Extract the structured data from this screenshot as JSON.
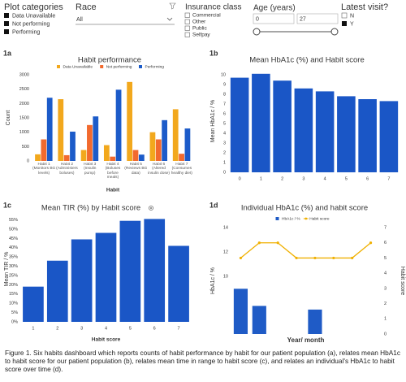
{
  "filters": {
    "plot_categories": {
      "title": "Plot categories",
      "items": [
        "Data Unavailable",
        "Not performing",
        "Performing"
      ]
    },
    "race": {
      "title": "Race",
      "selected": "All"
    },
    "insurance_class": {
      "title": "Insurance class",
      "options": [
        "Commercial",
        "Other",
        "Public",
        "Selfpay"
      ]
    },
    "age": {
      "title": "Age (years)",
      "min": 0,
      "max": 27
    },
    "latest_visit": {
      "title": "Latest visit?",
      "options": [
        "N",
        "Y"
      ]
    }
  },
  "chart_data": [
    {
      "type": "bar",
      "label": "1a",
      "title": "Habit performance",
      "xlabel": "Habit",
      "ylabel": "Count",
      "categories": [
        "Habit 1 (Monitors BG levels)",
        "Habit 2 (Administers boluses)",
        "Habit 3 (Insulin pump)",
        "Habit 4 (Boluses before meals)",
        "Habit 5 (Reviews BG data)",
        "Habit 6 (Altered insulin dose)",
        "Habit 7 (Consumes healthy diet)"
      ],
      "series": [
        {
          "name": "Data Unavailable",
          "color": "#f2a81d",
          "values": [
            230,
            2150,
            380,
            550,
            2750,
            1000,
            1800
          ]
        },
        {
          "name": "Not performing",
          "color": "#f26a2e",
          "values": [
            750,
            200,
            1250,
            150,
            380,
            750,
            250
          ]
        },
        {
          "name": "Performing",
          "color": "#1c5bc9",
          "values": [
            2200,
            1020,
            1550,
            2480,
            220,
            1420,
            1130
          ]
        }
      ],
      "ylim": [
        0,
        3000
      ],
      "yticks": [
        0,
        500,
        1000,
        1500,
        2000,
        2500,
        3000
      ],
      "legend": "top"
    },
    {
      "type": "bar",
      "label": "1b",
      "title": "Mean HbA1c (%) and Habit score",
      "ylabel": "Mean HbA1c / %",
      "categories": [
        "0",
        "1",
        "2",
        "3",
        "4",
        "5",
        "6",
        "7"
      ],
      "values": [
        9.7,
        10.1,
        9.4,
        8.6,
        8.3,
        7.8,
        7.5,
        7.3
      ],
      "color": "#1a56c6",
      "ylim": [
        0,
        10.5
      ],
      "yticks": [
        0,
        1,
        2,
        3,
        4,
        5,
        6,
        7,
        8,
        9,
        10
      ]
    },
    {
      "type": "bar",
      "label": "1c",
      "title": "Mean TIR (%) by Habit score",
      "xlabel": "Habit score",
      "ylabel": "Mean TIR / %",
      "categories": [
        "1",
        "2",
        "3",
        "4",
        "5",
        "6",
        "7"
      ],
      "values": [
        19,
        33,
        44.5,
        48,
        54.5,
        55.5,
        41
      ],
      "color": "#1a56c6",
      "ylim": [
        0,
        57
      ],
      "yticks": [
        {
          "value": 0,
          "label": "0%"
        },
        {
          "value": 5,
          "label": "5%"
        },
        {
          "value": 10,
          "label": "10%"
        },
        {
          "value": 15,
          "label": "15%"
        },
        {
          "value": 20,
          "label": "20%"
        },
        {
          "value": 25,
          "label": "25%"
        },
        {
          "value": 30,
          "label": "30%"
        },
        {
          "value": 35,
          "label": "35%"
        },
        {
          "value": 40,
          "label": "40%"
        },
        {
          "value": 45,
          "label": "45%"
        },
        {
          "value": 50,
          "label": "50%"
        },
        {
          "value": 55,
          "label": "55%"
        }
      ]
    },
    {
      "type": "combo",
      "label": "1d",
      "title": "Individual HbA1c (%) and habit score",
      "xlabel": "Year/ month",
      "ylabel": "HbA1c / %",
      "y2label": "Habit score",
      "categories": [
        null,
        null,
        null,
        null,
        null,
        null,
        null,
        null
      ],
      "series": [
        {
          "name": "HbA1c / %",
          "type": "bar",
          "color": "#1f5bc6",
          "values": [
            9,
            7.6,
            null,
            null,
            7.3,
            null,
            null,
            null
          ]
        },
        {
          "name": "Habit score",
          "type": "line",
          "axis": "y2",
          "color": "#f0b000",
          "values": [
            5,
            6,
            6,
            5,
            5,
            5,
            5,
            6
          ]
        }
      ],
      "ylim": [
        5.3,
        14
      ],
      "yticks": [
        10,
        12,
        14
      ],
      "y2lim": [
        0,
        7
      ],
      "y2ticks": [
        0,
        1,
        2,
        3,
        4,
        5,
        6,
        7
      ],
      "legend": "top"
    }
  ],
  "caption": "Figure 1. Six habits dashboard which reports counts of habit performance by habit for our patient population (a), relates mean HbA1c to habit score for our patient population (b), relates mean time in range to habit score (c), and relates an individual's HbA1c to habit score over time (d)."
}
